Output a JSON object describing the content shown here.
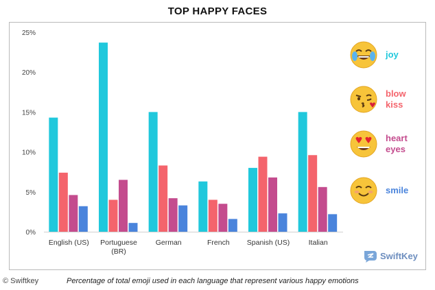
{
  "chart_data": {
    "type": "bar",
    "title": "TOP HAPPY FACES",
    "categories": [
      "English (US)",
      "Portuguese (BR)",
      "German",
      "French",
      "Spanish (US)",
      "Italian"
    ],
    "category_lines": [
      [
        "English (US)"
      ],
      [
        "Portuguese",
        "(BR)"
      ],
      [
        "German"
      ],
      [
        "French"
      ],
      [
        "Spanish (US)"
      ],
      [
        "Italian"
      ]
    ],
    "series": [
      {
        "name": "joy",
        "color": "#20c8dc",
        "values": [
          14.3,
          23.7,
          15.0,
          6.3,
          8.0,
          15.0
        ]
      },
      {
        "name": "blow kiss",
        "color": "#f4646c",
        "values": [
          7.4,
          4.0,
          8.3,
          4.0,
          9.4,
          9.6
        ]
      },
      {
        "name": "heart eyes",
        "color": "#c44c8e",
        "values": [
          4.6,
          6.5,
          4.2,
          3.5,
          6.8,
          5.6
        ]
      },
      {
        "name": "smile",
        "color": "#4a84dc",
        "values": [
          3.2,
          1.1,
          3.3,
          1.6,
          2.3,
          2.2
        ]
      }
    ],
    "ylim": [
      0,
      25
    ],
    "yticks": [
      0,
      5,
      10,
      15,
      20,
      25
    ],
    "ytick_labels": [
      "0%",
      "5%",
      "10%",
      "15%",
      "20%",
      "25%"
    ],
    "xlabel": "",
    "ylabel": "",
    "legend_position": "right"
  },
  "legend": [
    {
      "lines": [
        "joy"
      ],
      "color": "#20c8dc",
      "icon": "joy-emoji-icon"
    },
    {
      "lines": [
        "blow",
        "kiss"
      ],
      "color": "#f4646c",
      "icon": "blow-kiss-emoji-icon"
    },
    {
      "lines": [
        "heart",
        "eyes"
      ],
      "color": "#c44c8e",
      "icon": "heart-eyes-emoji-icon"
    },
    {
      "lines": [
        "smile"
      ],
      "color": "#4a84dc",
      "icon": "smile-emoji-icon"
    }
  ],
  "brand": "SwiftKey",
  "footer": {
    "credit": "© Swiftkey",
    "caption": "Percentage of total emoji used in each language that represent various happy emotions"
  }
}
